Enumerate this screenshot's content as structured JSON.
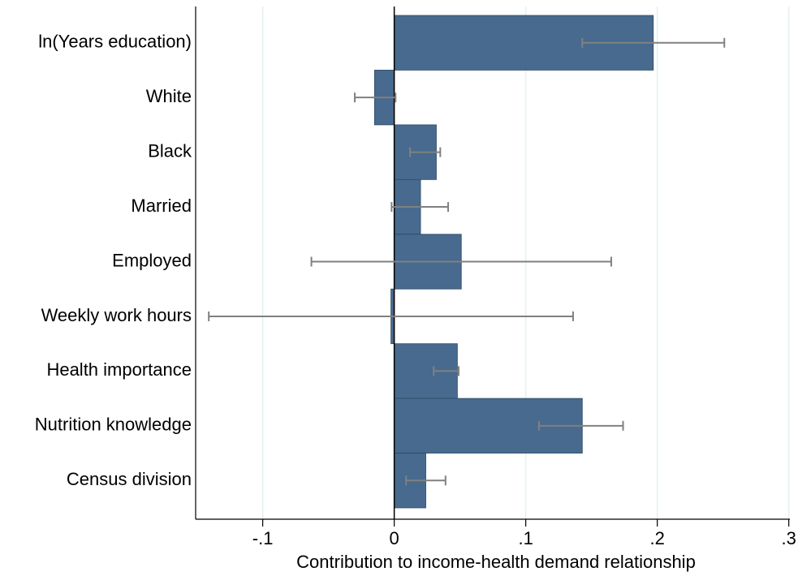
{
  "chart_data": {
    "type": "bar",
    "orientation": "horizontal",
    "x_label": "Contribution to income-health demand relationship",
    "categories": [
      "ln(Years education)",
      "White",
      "Black",
      "Married",
      "Employed",
      "Weekly work hours",
      "Health importance",
      "Nutrition knowledge",
      "Census division"
    ],
    "values": [
      0.197,
      -0.015,
      0.032,
      0.02,
      0.051,
      -0.0025,
      0.048,
      0.143,
      0.024
    ],
    "ci_low": [
      0.143,
      -0.03,
      0.012,
      -0.002,
      -0.063,
      -0.141,
      0.03,
      0.11,
      0.009
    ],
    "ci_high": [
      0.251,
      0.001,
      0.035,
      0.041,
      0.165,
      0.136,
      0.049,
      0.174,
      0.039
    ],
    "color": "#476a8e",
    "error_color": "#808080",
    "xlim": [
      -0.151,
      0.307
    ],
    "xticks": [
      {
        "value": -0.1,
        "label": "-.1"
      },
      0,
      {
        "value": 0.1,
        "label": ".1"
      },
      {
        "value": 0.2,
        "label": ".2"
      },
      {
        "value": 0.3,
        "label": ".3"
      }
    ],
    "grid": true
  }
}
